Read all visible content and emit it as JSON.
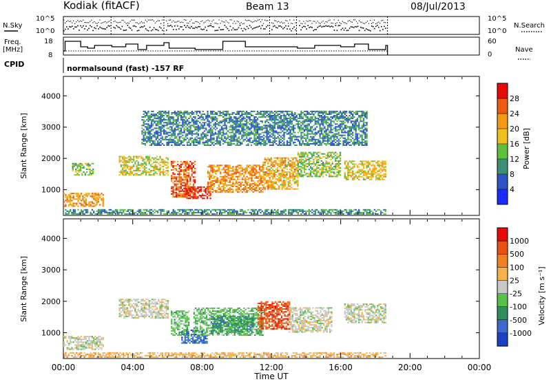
{
  "header": {
    "station": "Kodiak  (fitACF)",
    "beam": "Beam 13",
    "date": "08/Jul/2013"
  },
  "top_panels": {
    "nsky_label": "N.Sky",
    "nsky_ticks": [
      "10^5",
      "10^0"
    ],
    "nsearch_label": "N.Search",
    "nsearch_ticks": [
      "10^5",
      "10^0"
    ],
    "freq_label_1": "Freq.",
    "freq_label_2": "[MHz]",
    "freq_ticks": [
      "18",
      "8"
    ],
    "nave_label": "Nave",
    "nave_ticks": [
      "60",
      "0"
    ],
    "cpid_label": "CPID",
    "cpid_text": "normalsound (fast) -157 RF"
  },
  "chart_data": [
    {
      "type": "heatmap",
      "title": "",
      "ylabel": "Slant Range [km]",
      "ylim": [
        200,
        4600
      ],
      "yticks": [
        "1000",
        "2000",
        "3000",
        "4000"
      ],
      "xlabel": "",
      "xlim": [
        0,
        24
      ],
      "xticks_hours": [
        0,
        4,
        8,
        12,
        16,
        20,
        24
      ],
      "colorbar": {
        "label": "Power [dB]",
        "ticks": [
          "4",
          "8",
          "12",
          "16",
          "20",
          "24",
          "28"
        ],
        "colors": [
          "#1a2bff",
          "#2a55c8",
          "#3a8f74",
          "#5fbf3f",
          "#f0c020",
          "#f59a10",
          "#ee5a10",
          "#e80a0a"
        ]
      },
      "echo_regions": [
        {
          "t0": 0.0,
          "t1": 2.3,
          "r0": 450,
          "r1": 900,
          "level": 0.7
        },
        {
          "t0": 0.5,
          "t1": 1.7,
          "r0": 1450,
          "r1": 1850,
          "level": 0.45
        },
        {
          "t0": 3.2,
          "t1": 6.0,
          "r0": 1450,
          "r1": 2050,
          "level": 0.55
        },
        {
          "t0": 6.2,
          "t1": 7.6,
          "r0": 750,
          "r1": 1900,
          "level": 0.85
        },
        {
          "t0": 7.0,
          "t1": 8.5,
          "r0": 700,
          "r1": 1100,
          "level": 0.95
        },
        {
          "t0": 8.3,
          "t1": 11.5,
          "r0": 900,
          "r1": 1800,
          "level": 0.75
        },
        {
          "t0": 11.5,
          "t1": 13.5,
          "r0": 1000,
          "r1": 2000,
          "level": 0.65
        },
        {
          "t0": 13.5,
          "t1": 16.0,
          "r0": 1400,
          "r1": 2200,
          "level": 0.45
        },
        {
          "t0": 16.2,
          "t1": 18.6,
          "r0": 1300,
          "r1": 1900,
          "level": 0.6
        },
        {
          "t0": 0.0,
          "t1": 18.6,
          "r0": 200,
          "r1": 380,
          "level": 0.3
        },
        {
          "t0": 4.5,
          "t1": 17.5,
          "r0": 2400,
          "r1": 3500,
          "level": 0.25
        }
      ]
    },
    {
      "type": "heatmap",
      "title": "",
      "ylabel": "Slant Range [km]",
      "ylim": [
        200,
        4600
      ],
      "yticks": [
        "1000",
        "2000",
        "3000",
        "4000"
      ],
      "xlabel": "Time UT",
      "xlim": [
        0,
        24
      ],
      "xticks": [
        "00:00",
        "04:00",
        "08:00",
        "12:00",
        "16:00",
        "20:00",
        "00:00"
      ],
      "xticks_hours": [
        0,
        4,
        8,
        12,
        16,
        20,
        24
      ],
      "colorbar": {
        "label": "Velocity [m s⁻¹]",
        "ticks": [
          "1000",
          "500",
          "100",
          "25",
          "-25",
          "-100",
          "-500",
          "-1000"
        ],
        "colors": [
          "#1a40c8",
          "#3a6ad0",
          "#2f8f5a",
          "#57c24a",
          "#c8c8c8",
          "#f5b24a",
          "#f08020",
          "#ec5010",
          "#e80a0a"
        ]
      },
      "velocity_regions": [
        {
          "t0": 0.0,
          "t1": 2.3,
          "r0": 450,
          "r1": 900,
          "color": 4
        },
        {
          "t0": 3.2,
          "t1": 6.0,
          "r0": 1450,
          "r1": 2050,
          "color": 4
        },
        {
          "t0": 6.2,
          "t1": 7.2,
          "r0": 900,
          "r1": 1700,
          "color": 3
        },
        {
          "t0": 6.8,
          "t1": 8.3,
          "r0": 650,
          "r1": 1100,
          "color": 1
        },
        {
          "t0": 7.5,
          "t1": 11.5,
          "r0": 900,
          "r1": 1800,
          "color": 3
        },
        {
          "t0": 8.5,
          "t1": 11.0,
          "r0": 1000,
          "r1": 1500,
          "color": 2
        },
        {
          "t0": 11.2,
          "t1": 13.0,
          "r0": 1100,
          "r1": 2000,
          "color": 7
        },
        {
          "t0": 13.0,
          "t1": 15.5,
          "r0": 1000,
          "r1": 1800,
          "color": 4
        },
        {
          "t0": 16.2,
          "t1": 18.6,
          "r0": 1300,
          "r1": 1900,
          "color": 4
        },
        {
          "t0": 0.0,
          "t1": 18.6,
          "r0": 200,
          "r1": 380,
          "color": 5
        }
      ]
    }
  ]
}
